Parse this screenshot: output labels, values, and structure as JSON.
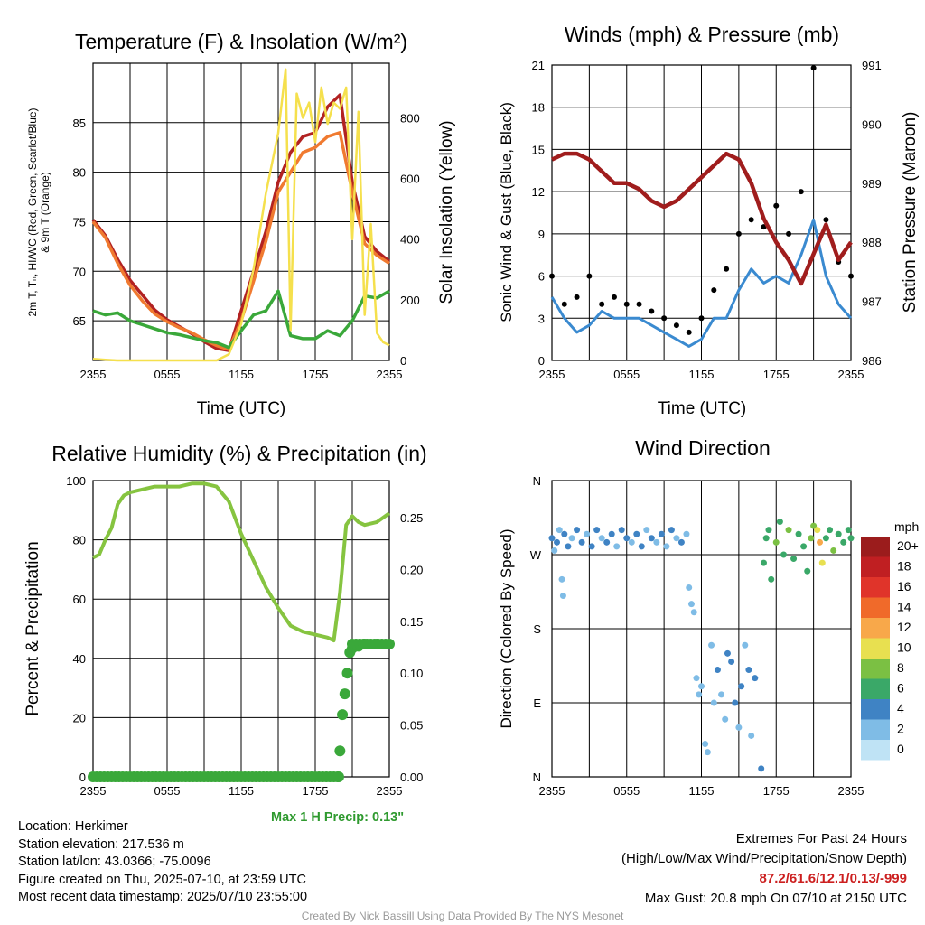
{
  "panels": {
    "temp": {
      "title": "Temperature (F) & Insolation (W/m²)",
      "ylabel_left": [
        "2m T, Tₙ, HI/WC (Red, Green, Scarlet/Blue)",
        "& 9m T (Orange)"
      ],
      "ylabel_right": "Solar Insolation (Yellow)",
      "xlabel": "Time (UTC)"
    },
    "wind": {
      "title": "Winds (mph) & Pressure (mb)",
      "ylabel_left": "Sonic Wind & Gust (Blue, Black)",
      "ylabel_right": "Station Pressure (Maroon)",
      "xlabel": "Time (UTC)"
    },
    "rh": {
      "title": "Relative Humidity (%) & Precipitation (in)",
      "ylabel_left": "Percent & Precipitation"
    },
    "dir": {
      "title": "Wind Direction",
      "ylabel_left": "Direction (Colored By Speed)",
      "colorbar_title": "mph"
    }
  },
  "chart_data": [
    {
      "id": "temp",
      "type": "line",
      "title": "Temperature (F) & Insolation (W/m²)",
      "xlabel": "Time (UTC)",
      "x_ticks": [
        "2355",
        "0555",
        "1155",
        "1755",
        "2355"
      ],
      "y_left": {
        "range": [
          61,
          91
        ],
        "ticks": [
          65,
          70,
          75,
          80,
          85
        ]
      },
      "y_right": {
        "range": [
          0,
          980
        ],
        "ticks": [
          0,
          200,
          400,
          600,
          800
        ]
      },
      "grid": true,
      "series": [
        {
          "name": "2m T",
          "color": "#b22222",
          "axis": "left",
          "x": [
            0,
            1,
            2,
            3,
            4,
            5,
            6,
            7,
            8,
            9,
            10,
            11,
            12,
            13,
            14,
            15,
            16,
            17,
            18,
            19,
            20,
            21,
            22,
            23,
            24
          ],
          "y": [
            75.2,
            73.6,
            71.2,
            69.1,
            67.6,
            66.1,
            65.1,
            64.4,
            63.7,
            62.9,
            62.2,
            62.0,
            66.0,
            70.0,
            74.0,
            79.0,
            82.0,
            83.6,
            84.0,
            86.6,
            87.8,
            79.0,
            73.5,
            72.0,
            71.0
          ]
        },
        {
          "name": "9m T",
          "color": "#f07a30",
          "axis": "left",
          "x": [
            0,
            1,
            2,
            3,
            4,
            5,
            6,
            7,
            8,
            9,
            10,
            11,
            12,
            13,
            14,
            15,
            16,
            17,
            18,
            19,
            20,
            21,
            22,
            23,
            24
          ],
          "y": [
            75.0,
            73.4,
            70.8,
            68.6,
            67.0,
            65.7,
            64.9,
            64.3,
            63.8,
            63.1,
            62.5,
            62.1,
            65.0,
            69.0,
            73.0,
            78.0,
            80.0,
            82.0,
            82.5,
            83.6,
            84.0,
            78.0,
            72.8,
            71.6,
            70.8
          ]
        },
        {
          "name": "Dewpoint",
          "color": "#3aa83a",
          "axis": "left",
          "x": [
            0,
            1,
            2,
            3,
            4,
            5,
            6,
            7,
            8,
            9,
            10,
            11,
            12,
            13,
            14,
            15,
            16,
            17,
            18,
            19,
            20,
            21,
            22,
            23,
            24
          ],
          "y": [
            66.0,
            65.6,
            65.8,
            65.0,
            64.6,
            64.2,
            63.8,
            63.6,
            63.3,
            63.0,
            62.8,
            62.3,
            64.0,
            65.6,
            66.0,
            68.0,
            63.5,
            63.2,
            63.2,
            64.0,
            63.5,
            65.0,
            67.5,
            67.3,
            68.0
          ]
        },
        {
          "name": "Solar Insolation",
          "color": "#f5e04d",
          "axis": "right",
          "x": [
            0,
            1,
            2,
            3,
            4,
            5,
            6,
            7,
            8,
            9,
            10,
            11,
            12,
            13,
            14,
            15,
            15.6,
            16,
            16.5,
            17,
            17.5,
            18,
            18.5,
            19,
            19.5,
            20,
            20.5,
            21,
            21.5,
            22,
            22.5,
            23,
            23.5,
            24
          ],
          "y": [
            5,
            2,
            0,
            0,
            0,
            0,
            0,
            0,
            0,
            0,
            0,
            20,
            120,
            300,
            550,
            750,
            960,
            100,
            880,
            800,
            850,
            720,
            900,
            780,
            850,
            830,
            900,
            400,
            820,
            150,
            450,
            90,
            60,
            50
          ]
        }
      ]
    },
    {
      "id": "wind",
      "type": "line",
      "title": "Winds (mph) & Pressure (mb)",
      "xlabel": "Time (UTC)",
      "x_ticks": [
        "2355",
        "0555",
        "1155",
        "1755",
        "2355"
      ],
      "y_left": {
        "range": [
          0,
          21
        ],
        "ticks": [
          0,
          3,
          6,
          9,
          12,
          15,
          18,
          21
        ]
      },
      "y_right": {
        "range": [
          986,
          991
        ],
        "ticks": [
          986,
          987,
          988,
          989,
          990,
          991
        ]
      },
      "grid": true,
      "series": [
        {
          "name": "Sonic Wind",
          "color": "#3a8ad0",
          "axis": "left",
          "x": [
            0,
            1,
            2,
            3,
            4,
            5,
            6,
            7,
            8,
            9,
            10,
            11,
            12,
            13,
            14,
            15,
            16,
            17,
            18,
            19,
            20,
            21,
            22,
            23,
            24
          ],
          "y": [
            4.5,
            3.0,
            2.0,
            2.5,
            3.5,
            3.0,
            3.0,
            3.0,
            2.5,
            2.0,
            1.5,
            1.0,
            1.5,
            3.0,
            3.0,
            5.0,
            6.5,
            5.5,
            6.0,
            5.5,
            7.5,
            10.0,
            6.0,
            4.0,
            3.0
          ]
        },
        {
          "name": "Gust",
          "color": "#000000",
          "axis": "left",
          "x": [
            0,
            1,
            2,
            3,
            4,
            5,
            6,
            7,
            8,
            9,
            10,
            11,
            12,
            13,
            14,
            15,
            16,
            17,
            18,
            19,
            20,
            21,
            22,
            23,
            24
          ],
          "y": [
            6.0,
            4.0,
            4.5,
            6.0,
            4.0,
            4.5,
            4.0,
            4.0,
            3.5,
            3.0,
            2.5,
            2.0,
            3.0,
            5.0,
            6.5,
            9.0,
            10.0,
            9.5,
            11.0,
            9.0,
            12.0,
            20.8,
            10.0,
            7.0,
            6.0
          ]
        },
        {
          "name": "Station Pressure",
          "color": "#a01d1d",
          "axis": "right",
          "x": [
            0,
            1,
            2,
            3,
            4,
            5,
            6,
            7,
            8,
            9,
            10,
            11,
            12,
            13,
            14,
            15,
            16,
            17,
            18,
            19,
            20,
            21,
            22,
            23,
            24
          ],
          "y": [
            989.4,
            989.5,
            989.5,
            989.4,
            989.2,
            989.0,
            989.0,
            988.9,
            988.7,
            988.6,
            988.7,
            988.9,
            989.1,
            989.3,
            989.5,
            989.4,
            989.0,
            988.4,
            988.0,
            987.7,
            987.3,
            987.8,
            988.3,
            987.7,
            988.0
          ]
        }
      ]
    },
    {
      "id": "rh",
      "type": "line",
      "title": "Relative Humidity (%) & Precipitation (in)",
      "ylabel": "Percent & Precipitation",
      "x_ticks": [
        "2355",
        "0555",
        "1155",
        "1755",
        "2355"
      ],
      "y_left": {
        "range": [
          0,
          100
        ],
        "ticks": [
          0,
          20,
          40,
          60,
          80,
          100
        ]
      },
      "y_right": {
        "range": [
          0,
          0.2857
        ],
        "ticks": [
          "0.00",
          "0.05",
          "0.10",
          "0.15",
          "0.20",
          "0.25"
        ]
      },
      "grid": true,
      "series": [
        {
          "name": "Relative Humidity",
          "color": "#86c440",
          "axis": "left",
          "x": [
            0,
            0.5,
            1,
            1.5,
            2,
            2.5,
            3,
            4,
            5,
            6,
            7,
            8,
            9,
            10,
            11,
            12,
            13,
            14,
            15,
            16,
            17,
            18,
            19,
            19.5,
            20,
            20.5,
            21,
            21.5,
            22,
            23,
            24
          ],
          "y": [
            74,
            75,
            80,
            84,
            92,
            95,
            96,
            97,
            98,
            98,
            98,
            99,
            99,
            98,
            93,
            82,
            73,
            64,
            57,
            51,
            49,
            48,
            47,
            46,
            62,
            85,
            88,
            86,
            85,
            86,
            89
          ]
        },
        {
          "name": "Precipitation",
          "color": "#3aa83a",
          "axis": "right",
          "x": [
            0,
            19.9,
            20.0,
            20.2,
            20.4,
            20.6,
            20.8,
            21.0,
            21.5,
            22,
            23,
            24
          ],
          "y": [
            0.0,
            0.0,
            0.025,
            0.06,
            0.08,
            0.1,
            0.12,
            0.124,
            0.126,
            0.128,
            0.128,
            0.128
          ]
        }
      ]
    },
    {
      "id": "dir",
      "type": "scatter",
      "title": "Wind Direction",
      "ylabel": "Direction (Colored By Speed)",
      "x_ticks": [
        "2355",
        "0555",
        "1155",
        "1755",
        "2355"
      ],
      "y_ticks": [
        "N",
        "E",
        "S",
        "W",
        "N"
      ],
      "grid": true,
      "colorbar": {
        "title": "mph",
        "labels": [
          "0",
          "2",
          "4",
          "6",
          "8",
          "10",
          "12",
          "14",
          "16",
          "18",
          "20+"
        ],
        "colors": [
          "#bfe3f5",
          "#7fbce6",
          "#3f83c4",
          "#3aa868",
          "#7bc043",
          "#e8e050",
          "#f8a84a",
          "#f06a2a",
          "#e0342a",
          "#c01f22",
          "#9b1c1c"
        ]
      },
      "points": [
        [
          0,
          290,
          4
        ],
        [
          0.2,
          275,
          2
        ],
        [
          0.4,
          285,
          3
        ],
        [
          0.6,
          300,
          2
        ],
        [
          0.8,
          240,
          1
        ],
        [
          0.9,
          220,
          1
        ],
        [
          1.0,
          295,
          3
        ],
        [
          1.3,
          280,
          4
        ],
        [
          1.6,
          290,
          2
        ],
        [
          2.0,
          300,
          3
        ],
        [
          2.4,
          285,
          4
        ],
        [
          2.8,
          295,
          2
        ],
        [
          3.2,
          280,
          3
        ],
        [
          3.6,
          300,
          4
        ],
        [
          4.0,
          290,
          2
        ],
        [
          4.4,
          285,
          3
        ],
        [
          4.8,
          295,
          4
        ],
        [
          5.2,
          280,
          2
        ],
        [
          5.6,
          300,
          3
        ],
        [
          6.0,
          290,
          4
        ],
        [
          6.4,
          285,
          2
        ],
        [
          6.8,
          295,
          3
        ],
        [
          7.2,
          280,
          4
        ],
        [
          7.6,
          300,
          2
        ],
        [
          8.0,
          290,
          3
        ],
        [
          8.4,
          285,
          2
        ],
        [
          8.8,
          295,
          4
        ],
        [
          9.2,
          280,
          2
        ],
        [
          9.6,
          300,
          3
        ],
        [
          10.0,
          290,
          2
        ],
        [
          10.4,
          285,
          3
        ],
        [
          10.8,
          295,
          1
        ],
        [
          11.0,
          230,
          1
        ],
        [
          11.2,
          210,
          1
        ],
        [
          11.4,
          200,
          1
        ],
        [
          11.6,
          120,
          1
        ],
        [
          11.8,
          100,
          2
        ],
        [
          12.0,
          110,
          1
        ],
        [
          12.3,
          40,
          1
        ],
        [
          12.5,
          30,
          1
        ],
        [
          12.8,
          160,
          2
        ],
        [
          13.0,
          90,
          2
        ],
        [
          13.3,
          130,
          3
        ],
        [
          13.6,
          100,
          2
        ],
        [
          13.9,
          70,
          1
        ],
        [
          14.1,
          150,
          3
        ],
        [
          14.4,
          140,
          4
        ],
        [
          14.7,
          90,
          3
        ],
        [
          15.0,
          60,
          2
        ],
        [
          15.2,
          110,
          3
        ],
        [
          15.5,
          160,
          2
        ],
        [
          15.8,
          130,
          4
        ],
        [
          16.0,
          50,
          2
        ],
        [
          16.3,
          120,
          3
        ],
        [
          16.8,
          10,
          4
        ],
        [
          17.0,
          260,
          5
        ],
        [
          17.2,
          290,
          6
        ],
        [
          17.4,
          300,
          5
        ],
        [
          17.6,
          240,
          6
        ],
        [
          18.0,
          285,
          7
        ],
        [
          18.3,
          310,
          6
        ],
        [
          18.6,
          270,
          5
        ],
        [
          19.0,
          300,
          7
        ],
        [
          19.4,
          265,
          6
        ],
        [
          19.8,
          295,
          5
        ],
        [
          20.2,
          280,
          6
        ],
        [
          20.5,
          250,
          5
        ],
        [
          20.8,
          290,
          7
        ],
        [
          21.0,
          305,
          8
        ],
        [
          21.3,
          300,
          10
        ],
        [
          21.5,
          285,
          12
        ],
        [
          21.7,
          260,
          9
        ],
        [
          22.0,
          290,
          6
        ],
        [
          22.3,
          300,
          5
        ],
        [
          22.6,
          275,
          7
        ],
        [
          23.0,
          295,
          6
        ],
        [
          23.4,
          285,
          5
        ],
        [
          23.8,
          300,
          6
        ],
        [
          24.0,
          290,
          5
        ]
      ]
    }
  ],
  "max_precip": "Max 1 H Precip: 0.13\"",
  "station_info": [
    "Location: Herkimer",
    "Station elevation: 217.536 m",
    "Station lat/lon: 43.0366; -75.0096",
    "Figure created on Thu, 2025-07-10, at 23:59 UTC",
    "Most recent data timestamp: 2025/07/10 23:55:00"
  ],
  "extremes": {
    "title": "Extremes For Past 24 Hours",
    "legend": "(High/Low/Max Wind/Precipitation/Snow Depth)",
    "values": "87.2/61.6/12.1/0.13/-999",
    "max_gust": "Max Gust: 20.8 mph On 07/10 at 2150 UTC"
  },
  "credit": "Created By Nick Bassill Using Data Provided By The NYS Mesonet"
}
